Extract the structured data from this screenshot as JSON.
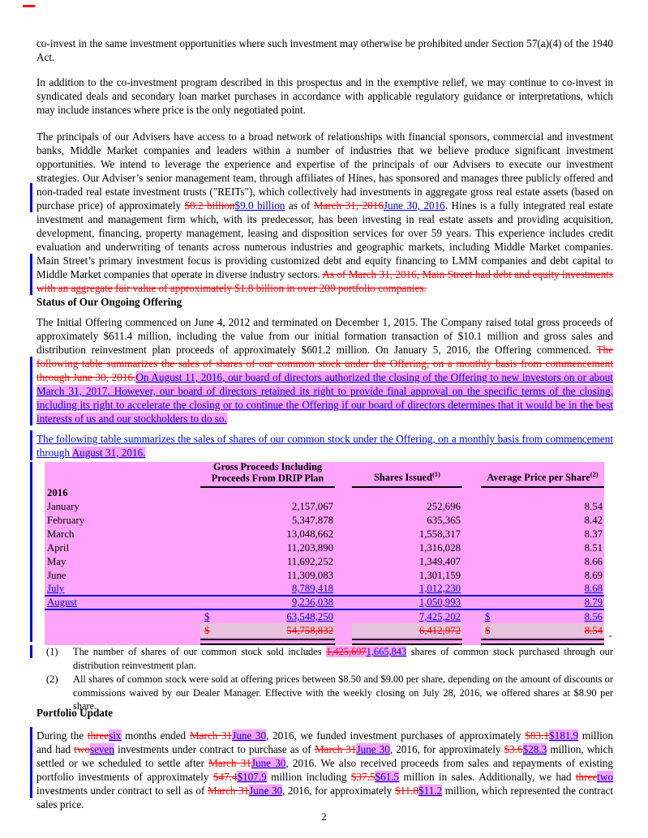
{
  "colors": {
    "highlight": "#ffa4fa",
    "muted_band": "#e6c4df",
    "ins_blue": "#0000ee",
    "del_red": "#ff0000"
  },
  "paragraphs": {
    "p1": [
      [
        "n",
        "co-invest in the same investment opportunities where such investment may otherwise be prohibited under Section 57(a)(4) of the 1940 Act."
      ]
    ],
    "p2": [
      [
        "n",
        "In addition to the co-investment program described in this prospectus and in the exemptive relief, we may continue to co-invest in syndicated deals and secondary loan market purchases in accordance with applicable regulatory guidance or interpretations, which may include instances where price is the only negotiated point."
      ]
    ],
    "p3": [
      [
        "n",
        "The principals of our Advisers have access to a broad network of relationships with financial sponsors, commercial and investment banks, Middle Market companies and leaders within a number of industries that we believe produce significant investment opportunities. We intend to leverage the experience and expertise of the principals of our Advisers to execute our investment strategies. Our Adviser’s senior management team, through affiliates of Hines, has sponsored and manages three publicly offered and non-traded real estate investment trusts (\"REITs\"), which collectively had investments in aggregate gross real estate assets (based on purchase price) of approximately "
      ],
      [
        "d",
        "$8.2 billion"
      ],
      [
        "i",
        "$9.0 billion"
      ],
      [
        "n",
        " as of "
      ],
      [
        "d",
        "March 31, 2016"
      ],
      [
        "i",
        "June 30, 2016"
      ],
      [
        "n",
        ". Hines is a fully integrated real estate investment and management firm which, with its predecessor, has been investing in real estate assets and providing acquisition, development, financing, property management, leasing and disposition services for over 59 years. This experience includes credit evaluation and underwriting of tenants across numerous industries and geographic markets, including Middle Market companies. Main Street’s primary investment focus is providing customized debt and equity financing to LMM companies and debt capital to Middle Market companies that operate in diverse industry sectors. "
      ],
      [
        "d",
        "As of March 31, 2016, Main Street had debt and equity investments with an aggregate fair value of approximately $1.8 billion in over 200 portfolio companies. "
      ]
    ],
    "p4": [
      [
        "n",
        "The Initial Offering commenced on June 4, 2012 and terminated on December 1, 2015. The Company raised total gross proceeds of approximately $611.4 million, including the value from our initial formation transaction of $10.1 million and gross sales and distribution reinvestment plan proceeds of approximately $601.2 million. On January 5, 2016, the Offering commenced. "
      ],
      [
        "d",
        "The following table summarizes the sales of shares of our common stock under the Offering, on a monthly basis from commencement through June 30, 2016."
      ],
      [
        "ih",
        "On August 11, 2016, our board of directors authorized the closing of the Offering to new investors on or about March 31, 2017. However, our board of directors retained its right to provide final approval on the specific terms of the closing, including its right to accelerate the closing or to continue the Offering if our board of directors determines that it would be in the best interests of us and our stockholders to do so."
      ]
    ],
    "p5": [
      [
        "i",
        "The following table summarizes the sales of shares of our common stock under the Offering, on a monthly basis from commencement through "
      ],
      [
        "ih",
        "August 31, 2016. "
      ]
    ],
    "p6": [
      [
        "n",
        "During the "
      ],
      [
        "d",
        "three"
      ],
      [
        "ih",
        "six"
      ],
      [
        "n",
        " months ended "
      ],
      [
        "d",
        "March 31"
      ],
      [
        "ih",
        "June 30"
      ],
      [
        "n",
        ", 2016, we funded investment purchases of approximately "
      ],
      [
        "d",
        "$83.1"
      ],
      [
        "ih",
        "$181.9"
      ],
      [
        "n",
        " million and had "
      ],
      [
        "d",
        "two"
      ],
      [
        "ih",
        "seven"
      ],
      [
        "n",
        " investments under contract to purchase as of "
      ],
      [
        "d",
        "March 31"
      ],
      [
        "ih",
        "June 30"
      ],
      [
        "n",
        ", 2016, for approximately "
      ],
      [
        "d",
        "$3.6"
      ],
      [
        "ih",
        "$28.3"
      ],
      [
        "n",
        " million, which settled or we scheduled to settle after "
      ],
      [
        "d",
        "March 31"
      ],
      [
        "ih",
        "June 30"
      ],
      [
        "n",
        ", 2016. We also received proceeds from sales and repayments of existing portfolio investments of approximately "
      ],
      [
        "d",
        "$47.4"
      ],
      [
        "ih",
        "$107.9"
      ],
      [
        "n",
        " million including "
      ],
      [
        "d",
        "$37.5"
      ],
      [
        "ih",
        "$61.5"
      ],
      [
        "n",
        " million in sales. Additionally, we had "
      ],
      [
        "d",
        "three"
      ],
      [
        "ih",
        "two"
      ],
      [
        "n",
        " investments under contract to sell as of "
      ],
      [
        "d",
        "March 31"
      ],
      [
        "ih",
        "June 30"
      ],
      [
        "n",
        ", 2016, for approximately "
      ],
      [
        "d",
        "$11.8"
      ],
      [
        "ih",
        "$11.2"
      ],
      [
        "n",
        " million, which represented the contract sales price."
      ]
    ]
  },
  "headings": {
    "offering": "Status of Our Ongoing Offering",
    "portfolio": "Portfolio Update"
  },
  "table": {
    "headers": {
      "gross_line1": "Gross Proceeds Including",
      "gross_line2": "Proceeds From DRIP Plan",
      "shares": "Shares Issued",
      "shares_sup": "(1)",
      "price": "Average Price per Share",
      "price_sup": "(2)"
    },
    "year_label": "2016",
    "rows": [
      {
        "month": "January",
        "gross": "2,157,067",
        "shares": "252,696",
        "price": "8.54",
        "style": "normal"
      },
      {
        "month": "February",
        "gross": "5,347,878",
        "shares": "635,365",
        "price": "8.42",
        "style": "normal"
      },
      {
        "month": "March",
        "gross": "13,048,662",
        "shares": "1,558,317",
        "price": "8.37",
        "style": "normal"
      },
      {
        "month": "April",
        "gross": "11,203,890",
        "shares": "1,316,028",
        "price": "8.51",
        "style": "normal"
      },
      {
        "month": "May",
        "gross": "11,692,252",
        "shares": "1,349,407",
        "price": "8.66",
        "style": "normal"
      },
      {
        "month": "June",
        "gross": "11,309,083",
        "shares": "1,301,159",
        "price": "8.69",
        "style": "normal"
      },
      {
        "month": "July",
        "gross": "8,789,418",
        "shares": "1,012,230",
        "price": "8.68",
        "style": "ins"
      },
      {
        "month": "August",
        "gross": "9,236,038",
        "shares": "1,050,993",
        "price": "8.79",
        "style": "ins"
      }
    ],
    "totals": [
      {
        "dollar": "$",
        "gross": "63,548,250",
        "shares": "7,425,202",
        "dollar2": "$",
        "price": "8.56",
        "style": "ins"
      },
      {
        "dollar": "$",
        "gross": "54,758,832",
        "shares": "6,412,972",
        "dollar2": "$",
        "price": "8.54",
        "style": "del"
      }
    ],
    "trailing_period": "."
  },
  "footnotes": [
    {
      "num": "(1)",
      "segments": [
        [
          "n",
          "The number of shares of our common stock sold includes "
        ],
        [
          "dh",
          "1,425,697"
        ],
        [
          "ih",
          "1,665,843"
        ],
        [
          "n",
          " shares of common stock purchased through our distribution reinvestment plan."
        ]
      ]
    },
    {
      "num": "(2)",
      "segments": [
        [
          "n",
          "All shares of common stock were sold at offering prices between $8.50 and $9.00 per share, depending on the amount of discounts or commissions waived by our Dealer Manager. Effective with the weekly closing on July 28, 2016, we offered shares at $8.90 per share."
        ]
      ]
    }
  ],
  "page": {
    "number": "2"
  }
}
